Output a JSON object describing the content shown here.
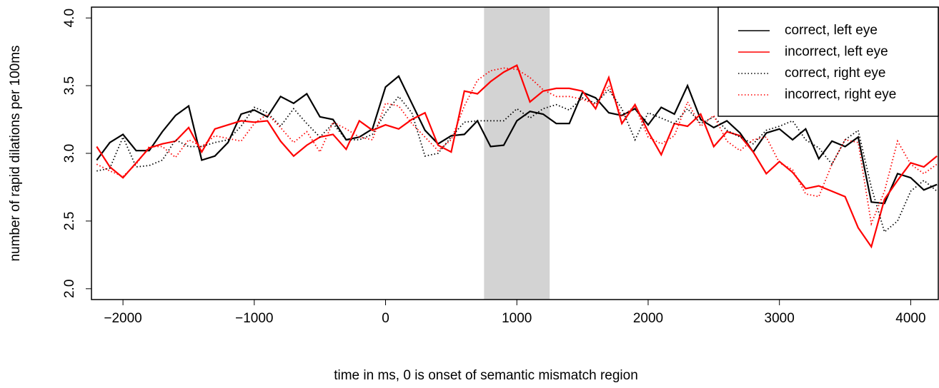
{
  "chart_data": {
    "type": "line",
    "xlabel": "time in ms, 0 is onset of semantic mismatch region",
    "ylabel": "number of rapid dilations per 100ms",
    "xlim": [
      -2240,
      4210
    ],
    "ylim": [
      1.92,
      4.08
    ],
    "xticks": [
      {
        "value": -2000,
        "label": "−2000"
      },
      {
        "value": -1000,
        "label": "−1000"
      },
      0,
      1000,
      2000,
      3000,
      4000
    ],
    "yticks": [
      {
        "value": 2,
        "label": "2.0"
      },
      2.5,
      {
        "value": 3,
        "label": "3.0"
      },
      3.5,
      {
        "value": 4,
        "label": "4.0"
      }
    ],
    "shaded_region": [
      750,
      1250
    ],
    "shaded_color": "#d3d3d3",
    "legend": "top-right",
    "x": [
      -2200,
      -2100,
      -2000,
      -1900,
      -1800,
      -1700,
      -1600,
      -1500,
      -1400,
      -1300,
      -1200,
      -1100,
      -1000,
      -900,
      -800,
      -700,
      -600,
      -500,
      -400,
      -300,
      -200,
      -100,
      0,
      100,
      200,
      300,
      400,
      500,
      600,
      700,
      800,
      900,
      1000,
      1100,
      1200,
      1300,
      1400,
      1500,
      1600,
      1700,
      1800,
      1900,
      2000,
      2100,
      2200,
      2300,
      2400,
      2500,
      2600,
      2700,
      2800,
      2900,
      3000,
      3100,
      3200,
      3300,
      3400,
      3500,
      3600,
      3700,
      3800,
      3900,
      4000,
      4100,
      4200
    ],
    "series": [
      {
        "name": "correct, left eye",
        "color": "#000000",
        "dash": "solid",
        "values": [
          2.95,
          3.08,
          3.14,
          3.02,
          3.02,
          3.16,
          3.28,
          3.35,
          2.95,
          2.98,
          3.08,
          3.29,
          3.32,
          3.27,
          3.42,
          3.37,
          3.44,
          3.27,
          3.25,
          3.1,
          3.12,
          3.18,
          3.49,
          3.57,
          3.37,
          3.17,
          3.07,
          3.13,
          3.14,
          3.24,
          3.05,
          3.06,
          3.24,
          3.31,
          3.29,
          3.22,
          3.22,
          3.45,
          3.41,
          3.3,
          3.28,
          3.33,
          3.21,
          3.34,
          3.29,
          3.5,
          3.25,
          3.19,
          3.24,
          3.15,
          3.01,
          3.15,
          3.18,
          3.1,
          3.18,
          2.96,
          3.09,
          3.05,
          3.12,
          2.64,
          2.63,
          2.85,
          2.82,
          2.73,
          2.77
        ]
      },
      {
        "name": "incorrect, left eye",
        "color": "#ff0000",
        "dash": "solid",
        "values": [
          3.05,
          2.9,
          2.82,
          2.93,
          3.04,
          3.07,
          3.09,
          3.19,
          3.01,
          3.18,
          3.21,
          3.24,
          3.23,
          3.24,
          3.09,
          2.98,
          3.06,
          3.12,
          3.14,
          3.03,
          3.24,
          3.17,
          3.21,
          3.18,
          3.25,
          3.3,
          3.06,
          3.01,
          3.46,
          3.44,
          3.53,
          3.6,
          3.65,
          3.38,
          3.46,
          3.48,
          3.48,
          3.46,
          3.33,
          3.56,
          3.22,
          3.36,
          3.16,
          2.99,
          3.22,
          3.2,
          3.29,
          3.05,
          3.16,
          3.13,
          3.01,
          2.85,
          2.94,
          2.86,
          2.74,
          2.76,
          2.72,
          2.68,
          2.45,
          2.31,
          2.66,
          2.8,
          2.93,
          2.9,
          2.98
        ]
      },
      {
        "name": "correct, right eye",
        "color": "#000000",
        "dash": "dotted",
        "values": [
          2.87,
          2.89,
          3.12,
          2.9,
          2.91,
          2.95,
          3.1,
          3.05,
          3.05,
          3.08,
          3.1,
          3.2,
          3.34,
          3.3,
          3.2,
          3.33,
          3.22,
          3.12,
          3.22,
          3.1,
          3.1,
          3.14,
          3.3,
          3.42,
          3.3,
          2.98,
          3.0,
          3.12,
          3.23,
          3.24,
          3.24,
          3.24,
          3.33,
          3.26,
          3.33,
          3.36,
          3.32,
          3.41,
          3.37,
          3.47,
          3.33,
          3.1,
          3.3,
          3.26,
          3.22,
          3.33,
          3.22,
          3.27,
          3.17,
          3.12,
          3.07,
          3.17,
          3.2,
          3.24,
          3.1,
          3.04,
          2.92,
          3.1,
          3.17,
          2.75,
          2.42,
          2.5,
          2.72,
          2.8,
          2.72
        ]
      },
      {
        "name": "incorrect, right eye",
        "color": "#ff0000",
        "dash": "dotted",
        "values": [
          2.92,
          2.87,
          2.83,
          2.92,
          3.05,
          3.05,
          2.97,
          3.1,
          3.05,
          3.13,
          3.11,
          3.09,
          3.22,
          3.29,
          3.19,
          3.08,
          3.16,
          3.01,
          3.23,
          3.18,
          3.12,
          3.1,
          3.37,
          3.35,
          3.22,
          3.12,
          3.02,
          3.1,
          3.35,
          3.54,
          3.61,
          3.63,
          3.62,
          3.56,
          3.47,
          3.42,
          3.42,
          3.4,
          3.36,
          3.5,
          3.27,
          3.35,
          3.12,
          3.07,
          3.13,
          3.38,
          3.2,
          3.28,
          3.09,
          3.02,
          3.1,
          3.12,
          2.93,
          2.88,
          2.7,
          2.68,
          2.92,
          3.1,
          3.08,
          2.48,
          2.72,
          3.09,
          2.92,
          2.85,
          2.92
        ]
      }
    ]
  }
}
